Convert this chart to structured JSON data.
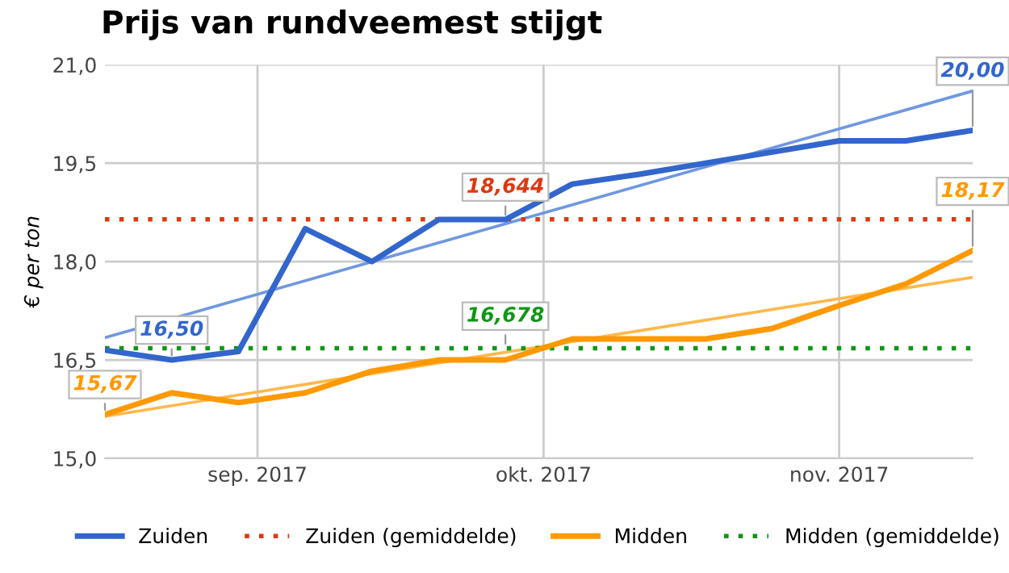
{
  "chart_data": {
    "type": "line",
    "title": "Prijs van rundveemest stijgt",
    "ylabel": "€ per ton",
    "x": [
      "2017-08-16",
      "2017-08-23",
      "2017-08-30",
      "2017-09-06",
      "2017-09-13",
      "2017-09-20",
      "2017-09-27",
      "2017-10-04",
      "2017-10-11",
      "2017-10-18",
      "2017-10-25",
      "2017-11-01",
      "2017-11-08",
      "2017-11-15"
    ],
    "series": [
      {
        "name": "Zuiden",
        "color": "#3366cc",
        "values": [
          16.65,
          16.5,
          16.63,
          18.5,
          18.0,
          18.64,
          18.64,
          19.18,
          19.33,
          19.5,
          19.67,
          19.84,
          19.84,
          20.0
        ],
        "value_labels": [
          null,
          "16,50",
          null,
          null,
          null,
          null,
          null,
          null,
          null,
          null,
          null,
          null,
          null,
          "20,00"
        ]
      },
      {
        "color": "#7097e0",
        "x": [
          "2017-08-16",
          "2017-11-15"
        ],
        "values": [
          16.84,
          20.6
        ]
      },
      {
        "name": "Midden",
        "color": "#ff9900",
        "values": [
          15.67,
          16.0,
          15.85,
          16.0,
          16.33,
          16.5,
          16.5,
          16.82,
          16.82,
          16.82,
          16.98,
          17.33,
          17.66,
          18.17
        ],
        "value_labels": [
          "15,67",
          null,
          null,
          null,
          null,
          null,
          null,
          null,
          null,
          null,
          null,
          null,
          null,
          "18,17"
        ]
      },
      {
        "color": "#ffb84d",
        "x": [
          "2017-08-16",
          "2017-11-15"
        ],
        "values": [
          15.64,
          17.76
        ]
      }
    ],
    "ref_lines": [
      {
        "axis": "y",
        "value": 18.644,
        "label": "Zuiden (gemiddelde)",
        "color": "#dc3912",
        "line_style": "dotted"
      },
      {
        "axis": "y",
        "value": 16.678,
        "label": "Midden (gemiddelde)",
        "color": "#109618",
        "line_style": "dotted"
      }
    ],
    "annotations": [
      {
        "text": "18,644",
        "x": "2017-09-27",
        "y": 18.644
      },
      {
        "text": "16,678",
        "x": "2017-09-27",
        "y": 16.678
      }
    ],
    "xlim": [
      "2017-08-16",
      "2017-11-15"
    ],
    "xticks": [
      {
        "value": "2017-09-01",
        "label": "sep. 2017"
      },
      {
        "value": "2017-10-01",
        "label": "okt. 2017"
      },
      {
        "value": "2017-11-01",
        "label": "nov. 2017"
      }
    ],
    "ylim": [
      15,
      21
    ],
    "yticks": [
      {
        "value": 15,
        "label": "15,0"
      },
      {
        "value": 16.5,
        "label": "16,5"
      },
      {
        "value": 18,
        "label": "18,0"
      },
      {
        "value": 19.5,
        "label": "19,5"
      },
      {
        "value": 21,
        "label": "21,0"
      }
    ],
    "grid": true,
    "legend": "bottom"
  }
}
